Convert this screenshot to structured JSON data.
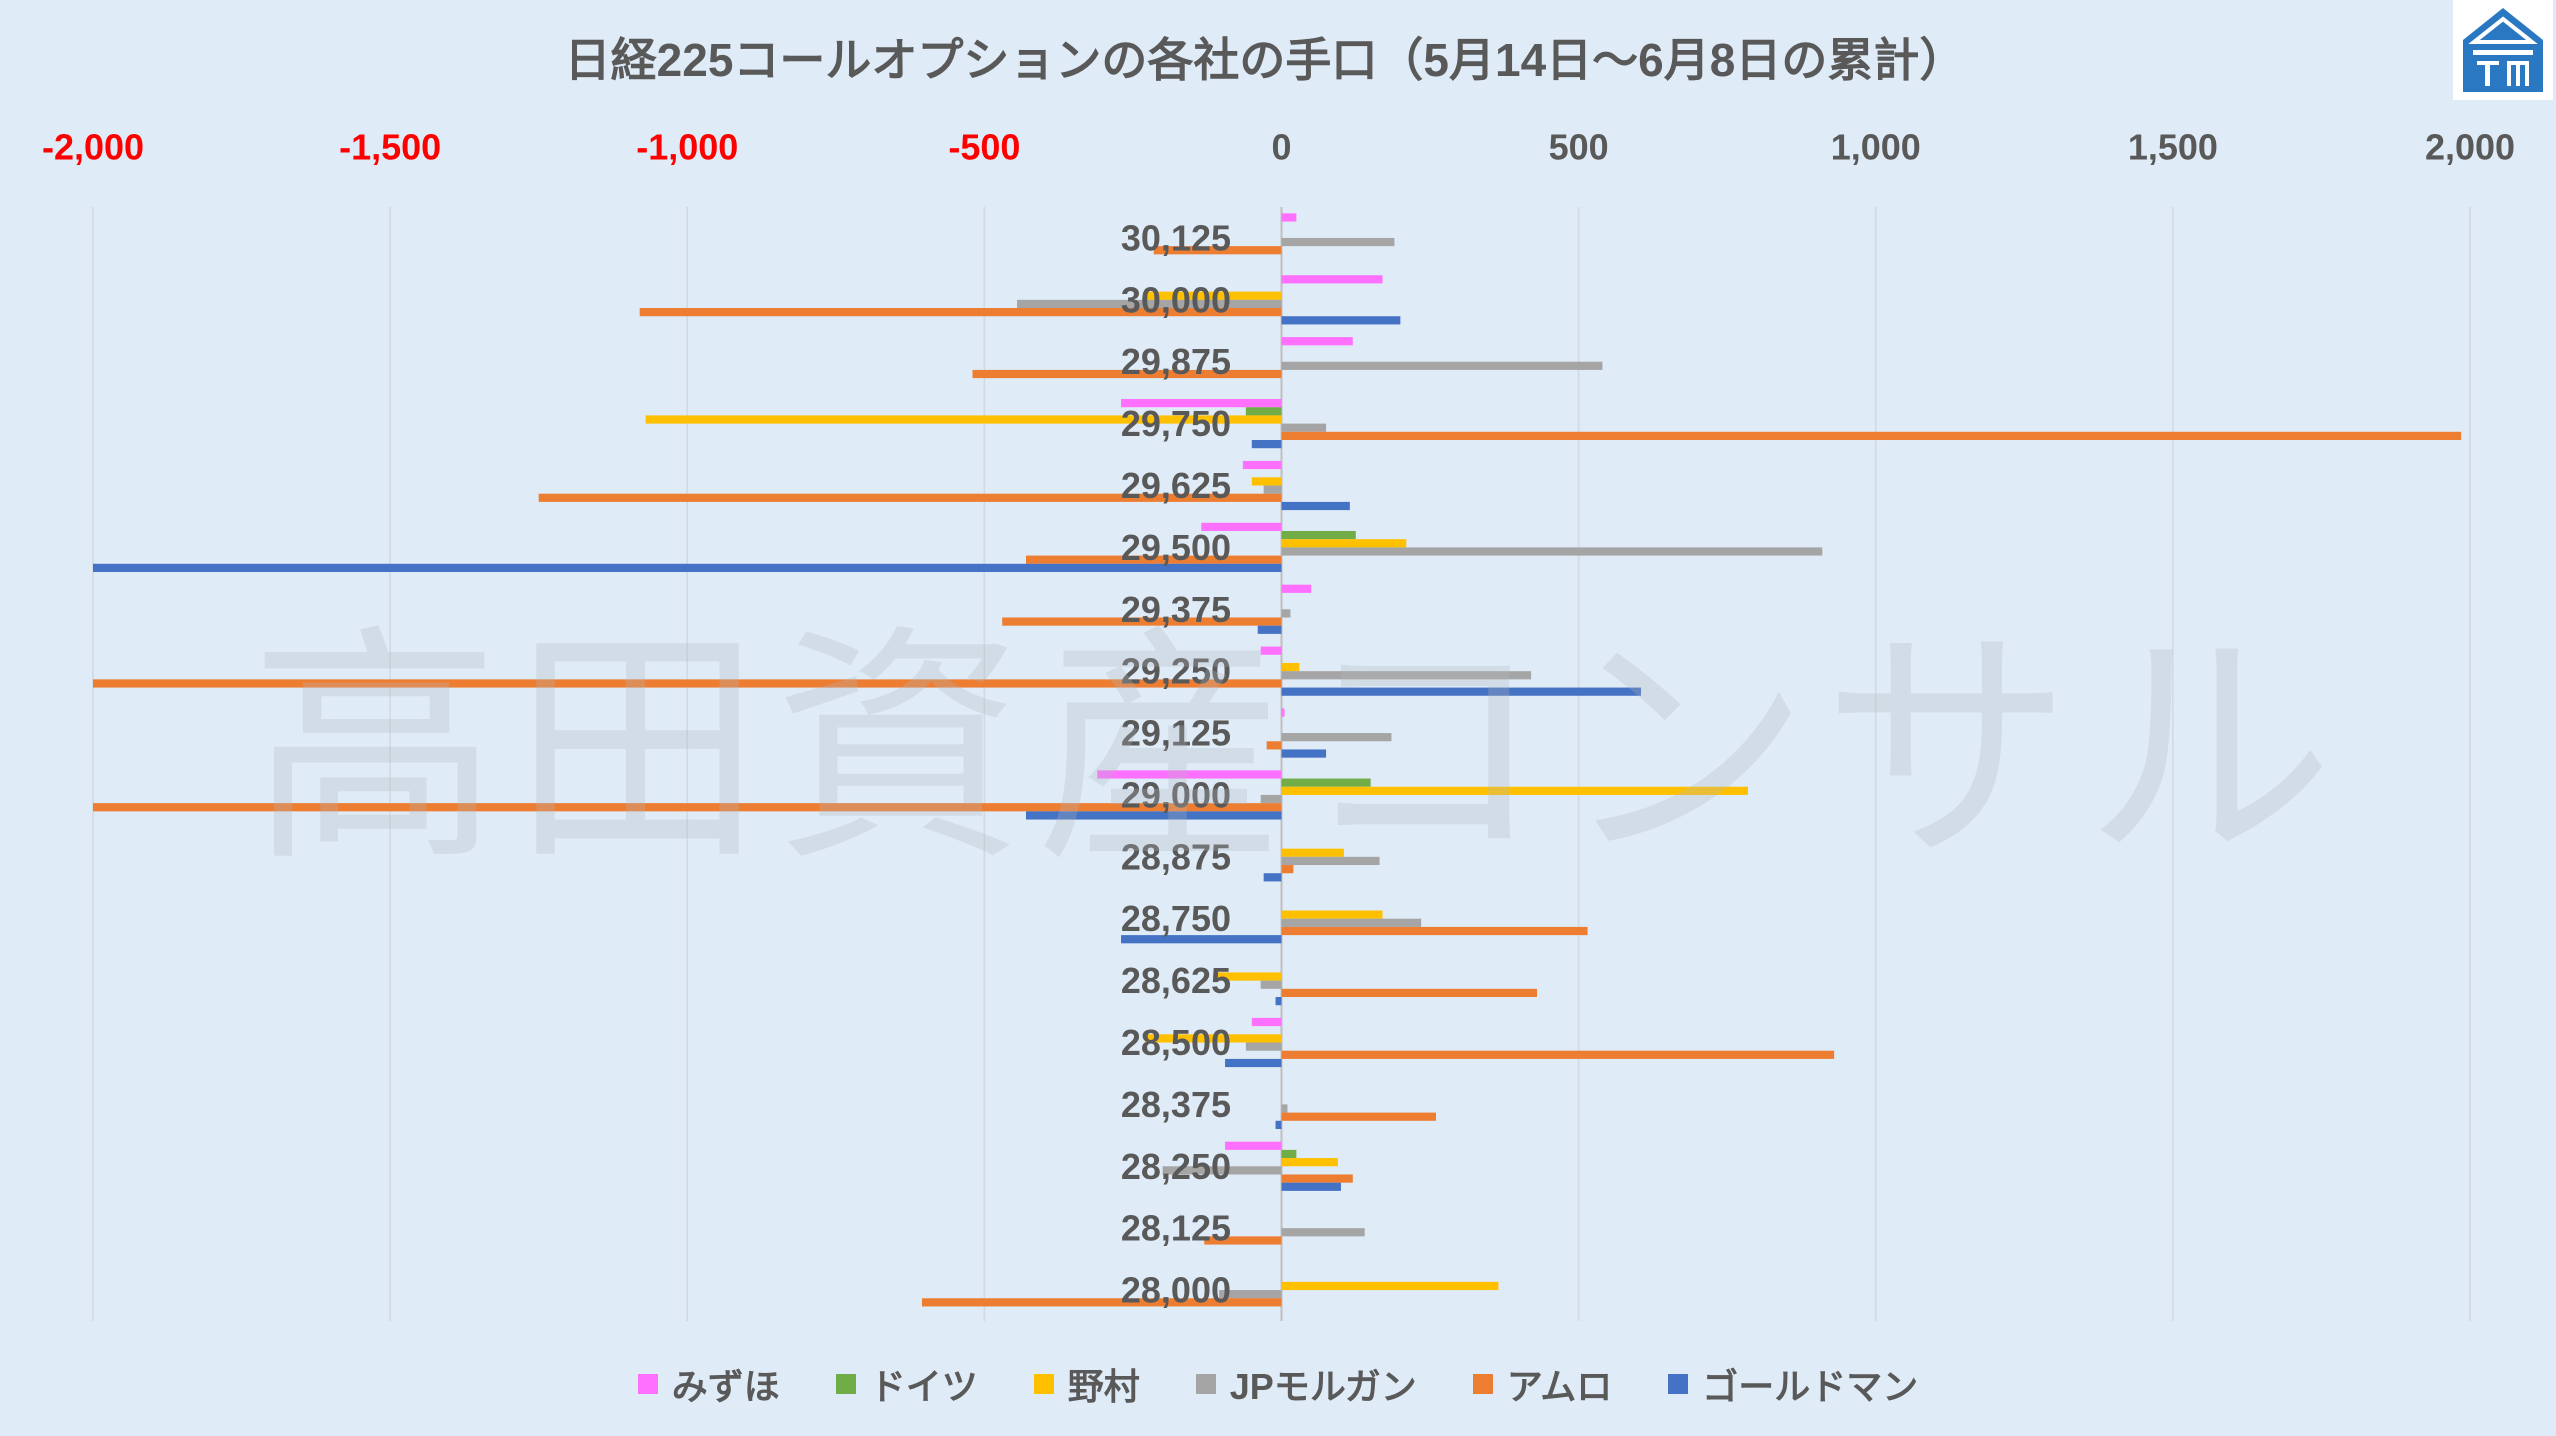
{
  "watermark": "高田資産コンサル",
  "chart_data": {
    "type": "bar",
    "orientation": "horizontal",
    "title": "日経225コールオプションの各社の手口（5月14日～6月8日の累計）",
    "categories": [
      "30,125",
      "30,000",
      "29,875",
      "29,750",
      "29,625",
      "29,500",
      "29,375",
      "29,250",
      "29,125",
      "29,000",
      "28,875",
      "28,750",
      "28,625",
      "28,500",
      "28,375",
      "28,250",
      "28,125",
      "28,000"
    ],
    "series": [
      {
        "name": "みずほ",
        "color": "#FF70FF",
        "values": [
          25,
          170,
          120,
          -270,
          -65,
          -135,
          50,
          -35,
          5,
          -310,
          0,
          0,
          0,
          -50,
          0,
          -95,
          0,
          0
        ]
      },
      {
        "name": "ドイツ",
        "color": "#70AD47",
        "values": [
          0,
          0,
          0,
          -60,
          0,
          125,
          0,
          0,
          0,
          150,
          0,
          0,
          0,
          0,
          0,
          25,
          0,
          0
        ]
      },
      {
        "name": "野村",
        "color": "#FFC000",
        "values": [
          0,
          -230,
          0,
          -1070,
          -50,
          210,
          0,
          30,
          0,
          785,
          105,
          170,
          -110,
          -230,
          0,
          95,
          0,
          365
        ]
      },
      {
        "name": "JPモルガン",
        "color": "#A5A5A5",
        "values": [
          190,
          -445,
          540,
          75,
          -30,
          910,
          15,
          420,
          185,
          -35,
          165,
          235,
          -35,
          -60,
          10,
          -200,
          140,
          -105
        ]
      },
      {
        "name": "アムロ",
        "color": "#ED7D31",
        "values": [
          -215,
          -1080,
          -520,
          1985,
          -1250,
          -430,
          -470,
          -2000,
          -25,
          -2000,
          20,
          515,
          430,
          930,
          260,
          120,
          -130,
          -605
        ]
      },
      {
        "name": "ゴールドマン",
        "color": "#4472C4",
        "values": [
          0,
          200,
          0,
          -50,
          115,
          -2000,
          -40,
          605,
          75,
          -430,
          -30,
          -270,
          -10,
          -95,
          -10,
          100,
          0,
          0
        ]
      }
    ],
    "xlim": [
      -2000,
      2000
    ],
    "x_ticks": [
      -2000,
      -1500,
      -1000,
      -500,
      0,
      500,
      1000,
      1500,
      2000
    ],
    "x_tick_labels": [
      "-2,000",
      "-1,500",
      "-1,000",
      "-500",
      "0",
      "500",
      "1,000",
      "1,500",
      "2,000"
    ],
    "x_axis_position": "top",
    "tick_color": "#595959",
    "negative_tick_color": "#FF0000",
    "grid": "vertical",
    "legend": "bottom"
  }
}
